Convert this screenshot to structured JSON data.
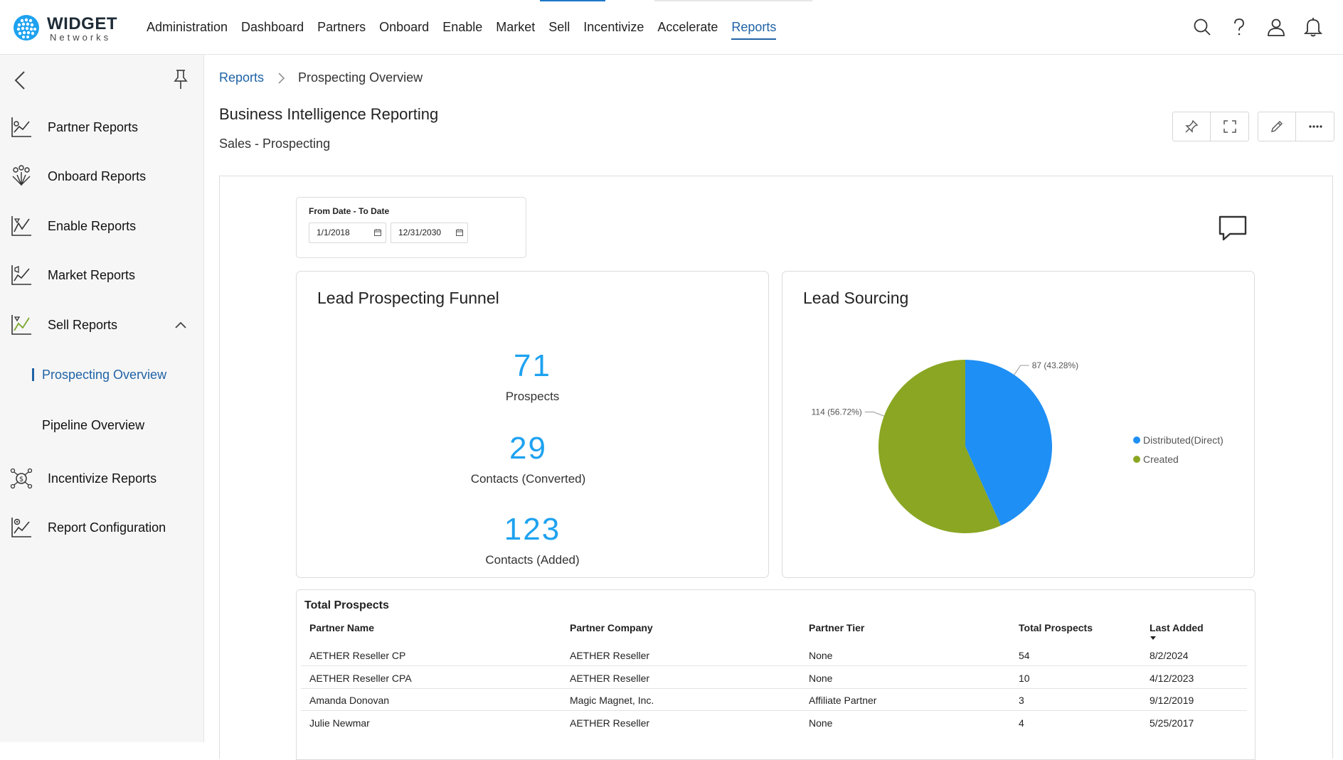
{
  "brand": {
    "name": "WIDGET",
    "sub": "Networks"
  },
  "nav": {
    "items": [
      {
        "label": "Administration"
      },
      {
        "label": "Dashboard"
      },
      {
        "label": "Partners"
      },
      {
        "label": "Onboard"
      },
      {
        "label": "Enable"
      },
      {
        "label": "Market"
      },
      {
        "label": "Sell"
      },
      {
        "label": "Incentivize"
      },
      {
        "label": "Accelerate"
      },
      {
        "label": "Reports"
      }
    ],
    "active": "Reports",
    "icons": [
      "search-icon",
      "help-icon",
      "user-icon",
      "bell-icon"
    ]
  },
  "sidebar": {
    "items": [
      {
        "label": "Partner Reports",
        "icon": "partner-reports-icon"
      },
      {
        "label": "Onboard Reports",
        "icon": "onboard-reports-icon"
      },
      {
        "label": "Enable Reports",
        "icon": "enable-reports-icon"
      },
      {
        "label": "Market Reports",
        "icon": "market-reports-icon"
      },
      {
        "label": "Sell Reports",
        "icon": "sell-reports-icon"
      },
      {
        "label": "Incentivize Reports",
        "icon": "incentivize-reports-icon"
      },
      {
        "label": "Report Configuration",
        "icon": "report-configuration-icon"
      }
    ],
    "sub_items": [
      {
        "label": "Prospecting Overview",
        "active": true
      },
      {
        "label": "Pipeline Overview",
        "active": false
      }
    ]
  },
  "breadcrumb": {
    "root": "Reports",
    "current": "Prospecting Overview"
  },
  "page": {
    "title": "Business Intelligence Reporting",
    "subtitle": "Sales - Prospecting"
  },
  "date_filter": {
    "label": "From Date - To Date",
    "from": "1/1/2018",
    "to": "12/31/2030"
  },
  "funnel": {
    "title": "Lead Prospecting Funnel",
    "metrics": [
      {
        "value": "71",
        "label": "Prospects"
      },
      {
        "value": "29",
        "label": "Contacts (Converted)"
      },
      {
        "value": "123",
        "label": "Contacts (Added)"
      }
    ]
  },
  "lead_sourcing": {
    "title": "Lead Sourcing",
    "slices": [
      {
        "name": "Distributed(Direct)",
        "value": 87,
        "percent": "43.28%",
        "color": "#1e8ff5",
        "label": "87 (43.28%)"
      },
      {
        "name": "Created",
        "value": 114,
        "percent": "56.72%",
        "color": "#8aa623",
        "label": "114 (56.72%)"
      }
    ]
  },
  "chart_data": {
    "type": "pie",
    "title": "Lead Sourcing",
    "categories": [
      "Distributed(Direct)",
      "Created"
    ],
    "values": [
      87,
      114
    ],
    "legend": "right"
  },
  "prospects_table": {
    "title": "Total Prospects",
    "columns": [
      "Partner Name",
      "Partner Company",
      "Partner Tier",
      "Total Prospects",
      "Last Added"
    ],
    "sorted_column": "Last Added",
    "rows": [
      [
        "AETHER Reseller CP",
        "AETHER Reseller",
        "None",
        "54",
        "8/2/2024"
      ],
      [
        "AETHER Reseller CPA",
        "AETHER Reseller",
        "None",
        "10",
        "4/12/2023"
      ],
      [
        "Amanda Donovan",
        "Magic Magnet, Inc.",
        "Affiliate Partner",
        "3",
        "9/12/2019"
      ],
      [
        "Julie Newmar",
        "AETHER Reseller",
        "None",
        "4",
        "5/25/2017"
      ]
    ]
  }
}
